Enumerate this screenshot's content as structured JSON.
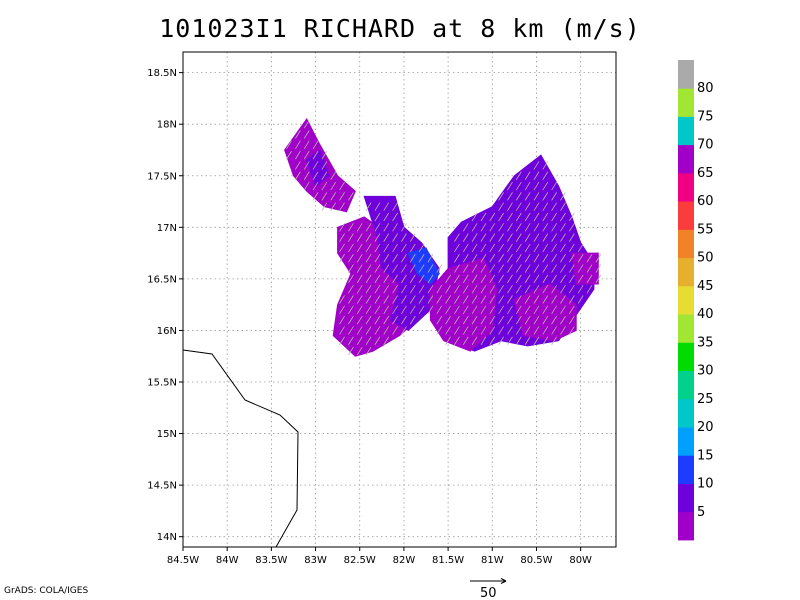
{
  "title": "101023I1 RICHARD at 8 km (m/s)",
  "credit": "GrADS: COLA/IGES",
  "chart_data": {
    "type": "heatmap",
    "title": "101023I1 RICHARD at 8 km (m/s)",
    "units": "m/s",
    "xlim": [
      -84.5,
      -79.6
    ],
    "ylim": [
      13.9,
      18.7
    ],
    "x_ticks": [
      {
        "value": -84.5,
        "label": "84.5W"
      },
      {
        "value": -84.0,
        "label": "84W"
      },
      {
        "value": -83.5,
        "label": "83.5W"
      },
      {
        "value": -83.0,
        "label": "83W"
      },
      {
        "value": -82.5,
        "label": "82.5W"
      },
      {
        "value": -82.0,
        "label": "82W"
      },
      {
        "value": -81.5,
        "label": "81.5W"
      },
      {
        "value": -81.0,
        "label": "81W"
      },
      {
        "value": -80.5,
        "label": "80.5W"
      },
      {
        "value": -80.0,
        "label": "80W"
      }
    ],
    "y_ticks": [
      {
        "value": 14.0,
        "label": "14N"
      },
      {
        "value": 14.5,
        "label": "14.5N"
      },
      {
        "value": 15.0,
        "label": "15N"
      },
      {
        "value": 15.5,
        "label": "15.5N"
      },
      {
        "value": 16.0,
        "label": "16N"
      },
      {
        "value": 16.5,
        "label": "16.5N"
      },
      {
        "value": 17.0,
        "label": "17N"
      },
      {
        "value": 17.5,
        "label": "17.5N"
      },
      {
        "value": 18.0,
        "label": "18N"
      },
      {
        "value": 18.5,
        "label": "18.5N"
      }
    ],
    "grid": true,
    "colorbar": {
      "labels": [
        "5",
        "10",
        "15",
        "20",
        "25",
        "30",
        "35",
        "40",
        "45",
        "50",
        "55",
        "60",
        "65",
        "70",
        "75",
        "80"
      ],
      "colors": [
        "#a000c8",
        "#6e00dc",
        "#1e3cff",
        "#00a0ff",
        "#00c8c8",
        "#00d28c",
        "#00dc00",
        "#a0e632",
        "#e6dc32",
        "#e6af2d",
        "#f08228",
        "#fa3c3c",
        "#f00082",
        "#a000c8",
        "#00c8c8",
        "#a0e632",
        "#aaaaaa"
      ]
    },
    "speed_regions": [
      {
        "name": "northwest arm",
        "polygon": [
          [
            -83.35,
            17.75
          ],
          [
            -83.1,
            18.05
          ],
          [
            -82.95,
            17.8
          ],
          [
            -82.75,
            17.5
          ],
          [
            -82.55,
            17.35
          ],
          [
            -82.65,
            17.15
          ],
          [
            -82.9,
            17.2
          ],
          [
            -83.1,
            17.35
          ],
          [
            -83.25,
            17.5
          ]
        ],
        "speed_class": "5"
      },
      {
        "name": "northwest arm core",
        "polygon": [
          [
            -83.1,
            17.65
          ],
          [
            -82.95,
            17.75
          ],
          [
            -82.85,
            17.5
          ],
          [
            -83.0,
            17.4
          ]
        ],
        "speed_class": "10"
      },
      {
        "name": "central west",
        "polygon": [
          [
            -82.75,
            17.0
          ],
          [
            -82.45,
            17.1
          ],
          [
            -82.2,
            16.95
          ],
          [
            -81.95,
            16.85
          ],
          [
            -81.75,
            16.7
          ],
          [
            -81.7,
            16.3
          ],
          [
            -81.85,
            16.1
          ],
          [
            -82.05,
            15.95
          ],
          [
            -82.35,
            15.8
          ],
          [
            -82.55,
            15.75
          ],
          [
            -82.8,
            15.95
          ],
          [
            -82.75,
            16.25
          ],
          [
            -82.6,
            16.55
          ],
          [
            -82.75,
            16.75
          ]
        ],
        "speed_class": "5"
      },
      {
        "name": "central blue patch",
        "polygon": [
          [
            -82.45,
            17.3
          ],
          [
            -82.1,
            17.3
          ],
          [
            -82.0,
            17.0
          ],
          [
            -81.8,
            16.85
          ],
          [
            -81.6,
            16.6
          ],
          [
            -81.7,
            16.2
          ],
          [
            -81.95,
            16.0
          ],
          [
            -82.15,
            16.1
          ],
          [
            -82.05,
            16.45
          ],
          [
            -82.25,
            16.6
          ],
          [
            -82.3,
            16.9
          ]
        ],
        "speed_class": "10"
      },
      {
        "name": "central cyan streak",
        "polygon": [
          [
            -81.95,
            16.75
          ],
          [
            -81.75,
            16.8
          ],
          [
            -81.6,
            16.55
          ],
          [
            -81.7,
            16.45
          ],
          [
            -81.85,
            16.55
          ]
        ],
        "speed_class": "15"
      },
      {
        "name": "east lobe",
        "polygon": [
          [
            -81.35,
            17.05
          ],
          [
            -81.0,
            17.2
          ],
          [
            -80.75,
            17.5
          ],
          [
            -80.45,
            17.7
          ],
          [
            -80.25,
            17.4
          ],
          [
            -80.1,
            17.1
          ],
          [
            -80.0,
            16.85
          ],
          [
            -79.85,
            16.65
          ],
          [
            -79.85,
            16.4
          ],
          [
            -80.05,
            16.15
          ],
          [
            -80.25,
            15.9
          ],
          [
            -80.6,
            15.85
          ],
          [
            -80.9,
            15.9
          ],
          [
            -81.2,
            15.8
          ],
          [
            -81.5,
            15.9
          ],
          [
            -81.55,
            16.2
          ],
          [
            -81.5,
            16.6
          ],
          [
            -81.5,
            16.9
          ]
        ],
        "speed_class": "10"
      },
      {
        "name": "east lobe southwest",
        "polygon": [
          [
            -81.5,
            16.6
          ],
          [
            -81.1,
            16.7
          ],
          [
            -80.95,
            16.4
          ],
          [
            -81.0,
            16.0
          ],
          [
            -81.25,
            15.8
          ],
          [
            -81.55,
            15.9
          ],
          [
            -81.7,
            16.1
          ],
          [
            -81.7,
            16.4
          ]
        ],
        "speed_class": "5"
      },
      {
        "name": "east lobe southeast",
        "polygon": [
          [
            -80.75,
            16.3
          ],
          [
            -80.35,
            16.45
          ],
          [
            -80.05,
            16.25
          ],
          [
            -80.05,
            16.0
          ],
          [
            -80.3,
            15.9
          ],
          [
            -80.65,
            15.95
          ]
        ],
        "speed_class": "5"
      },
      {
        "name": "east lobe eastern tip",
        "polygon": [
          [
            -80.1,
            16.75
          ],
          [
            -79.8,
            16.75
          ],
          [
            -79.8,
            16.45
          ],
          [
            -80.05,
            16.45
          ]
        ],
        "speed_class": "5"
      }
    ],
    "reference_vector": {
      "label": "50",
      "units": "m/s"
    }
  }
}
